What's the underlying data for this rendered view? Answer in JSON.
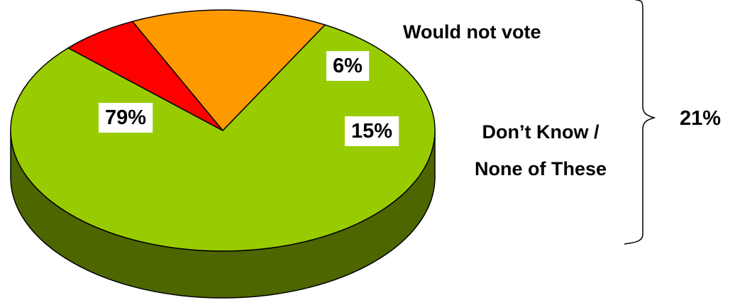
{
  "chart_data": {
    "type": "pie",
    "style": "3d",
    "slices": [
      {
        "key": "vote",
        "value": 79,
        "label": "79%",
        "name": "",
        "color": "#99cc00",
        "side_color": "#4d6600"
      },
      {
        "key": "wouldnot",
        "value": 6,
        "label": "6%",
        "name": "Would not vote",
        "color": "#ff0000",
        "side_color": "#800000"
      },
      {
        "key": "dontknow",
        "value": 15,
        "label": "15%",
        "name_lines": [
          "Don’t Know /",
          "None of These"
        ],
        "color": "#ff9900",
        "side_color": "#804c00"
      }
    ],
    "group": {
      "label": "21%",
      "members": [
        "wouldnot",
        "dontknow"
      ]
    }
  }
}
